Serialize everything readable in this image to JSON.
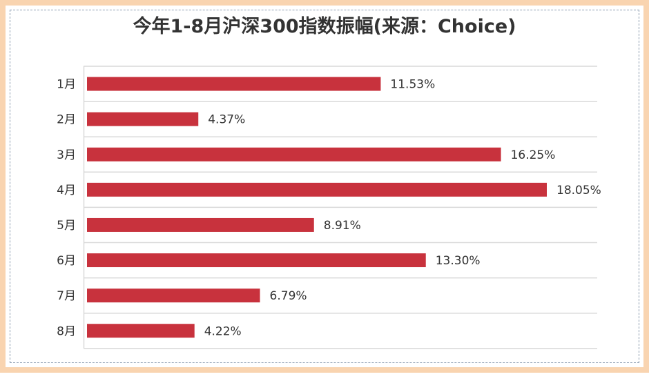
{
  "chart_data": {
    "type": "bar",
    "orientation": "horizontal",
    "title": "今年1-8月沪深300指数振幅(来源：Choice)",
    "categories": [
      "1月",
      "2月",
      "3月",
      "4月",
      "5月",
      "6月",
      "7月",
      "8月"
    ],
    "values": [
      11.53,
      4.37,
      16.25,
      18.05,
      8.91,
      13.3,
      6.79,
      4.22
    ],
    "value_labels": [
      "11.53%",
      "4.37%",
      "16.25%",
      "18.05%",
      "8.91%",
      "13.30%",
      "6.79%",
      "4.22%"
    ],
    "xlabel": "",
    "ylabel": "",
    "xlim": [
      0,
      20
    ],
    "grid": true,
    "legend": "none",
    "bar_color": "#c8323d"
  }
}
